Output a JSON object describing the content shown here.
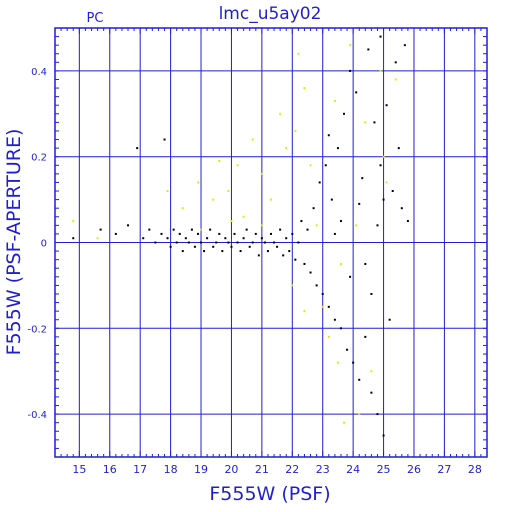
{
  "title": "lmc_u5ay02",
  "corner_label": "PC",
  "chart_data": {
    "type": "scatter",
    "title": "lmc_u5ay02",
    "xlabel": "F555W (PSF)",
    "ylabel": "F555W (PSF-APERTURE)",
    "xlim": [
      14.2,
      28.4
    ],
    "ylim": [
      -0.5,
      0.5
    ],
    "x_ticks": [
      15,
      16,
      17,
      18,
      19,
      20,
      21,
      22,
      23,
      24,
      25,
      26,
      27,
      28
    ],
    "x_tick_labels": [
      "15",
      "16",
      "17",
      "18",
      "19",
      "20",
      "21",
      "22",
      "23",
      "24",
      "25",
      "26",
      "27",
      "28"
    ],
    "y_ticks": [
      -0.4,
      -0.2,
      0,
      0.2,
      0.4
    ],
    "y_tick_labels": [
      "-0.4",
      "-0.2",
      "0",
      "0.2",
      "0.4"
    ],
    "grid": true,
    "series": [
      {
        "color": "#000000",
        "points": [
          [
            14.8,
            0.01
          ],
          [
            15.7,
            0.03
          ],
          [
            16.2,
            0.02
          ],
          [
            16.6,
            0.04
          ],
          [
            16.9,
            0.22
          ],
          [
            17.1,
            0.01
          ],
          [
            17.3,
            0.03
          ],
          [
            17.5,
            0.0
          ],
          [
            17.7,
            0.02
          ],
          [
            17.8,
            0.24
          ],
          [
            17.9,
            0.01
          ],
          [
            18.0,
            -0.01
          ],
          [
            18.1,
            0.03
          ],
          [
            18.2,
            0.0
          ],
          [
            18.3,
            0.02
          ],
          [
            18.4,
            -0.02
          ],
          [
            18.5,
            0.01
          ],
          [
            18.6,
            0.0
          ],
          [
            18.7,
            0.03
          ],
          [
            18.8,
            -0.01
          ],
          [
            18.9,
            0.02
          ],
          [
            19.0,
            0.0
          ],
          [
            19.1,
            -0.02
          ],
          [
            19.2,
            0.01
          ],
          [
            19.3,
            0.03
          ],
          [
            19.4,
            -0.01
          ],
          [
            19.5,
            0.0
          ],
          [
            19.6,
            0.02
          ],
          [
            19.7,
            -0.02
          ],
          [
            19.8,
            0.01
          ],
          [
            19.9,
            0.0
          ],
          [
            20.0,
            -0.01
          ],
          [
            20.1,
            0.02
          ],
          [
            20.2,
            0.0
          ],
          [
            20.3,
            -0.02
          ],
          [
            20.4,
            0.01
          ],
          [
            20.5,
            0.03
          ],
          [
            20.6,
            -0.01
          ],
          [
            20.7,
            0.0
          ],
          [
            20.8,
            0.02
          ],
          [
            20.9,
            -0.03
          ],
          [
            21.0,
            0.01
          ],
          [
            21.1,
            0.0
          ],
          [
            21.2,
            -0.02
          ],
          [
            21.3,
            0.02
          ],
          [
            21.4,
            0.0
          ],
          [
            21.5,
            -0.01
          ],
          [
            21.6,
            0.03
          ],
          [
            21.7,
            -0.03
          ],
          [
            21.8,
            0.01
          ],
          [
            21.9,
            -0.02
          ],
          [
            22.0,
            0.02
          ],
          [
            22.1,
            -0.04
          ],
          [
            22.2,
            0.0
          ],
          [
            22.3,
            0.05
          ],
          [
            22.4,
            -0.05
          ],
          [
            22.5,
            0.03
          ],
          [
            22.6,
            -0.07
          ],
          [
            22.7,
            0.08
          ],
          [
            22.8,
            -0.1
          ],
          [
            22.9,
            0.14
          ],
          [
            23.0,
            -0.12
          ],
          [
            23.1,
            0.18
          ],
          [
            23.2,
            -0.15
          ],
          [
            23.3,
            0.1
          ],
          [
            23.4,
            -0.18
          ],
          [
            23.5,
            0.22
          ],
          [
            23.6,
            -0.2
          ],
          [
            23.7,
            0.3
          ],
          [
            23.8,
            -0.25
          ],
          [
            23.9,
            0.4
          ],
          [
            24.0,
            -0.28
          ],
          [
            24.1,
            0.35
          ],
          [
            24.2,
            -0.32
          ],
          [
            24.3,
            0.15
          ],
          [
            24.4,
            -0.22
          ],
          [
            24.5,
            0.45
          ],
          [
            24.6,
            -0.35
          ],
          [
            24.7,
            0.28
          ],
          [
            24.8,
            -0.4
          ],
          [
            24.9,
            0.48
          ],
          [
            25.0,
            -0.45
          ],
          [
            25.1,
            0.32
          ],
          [
            25.2,
            -0.18
          ],
          [
            25.3,
            0.12
          ],
          [
            25.4,
            0.42
          ],
          [
            25.5,
            0.22
          ],
          [
            25.6,
            0.08
          ],
          [
            25.7,
            0.46
          ],
          [
            25.8,
            0.05
          ],
          [
            23.6,
            0.05
          ],
          [
            23.9,
            -0.08
          ],
          [
            24.2,
            0.09
          ],
          [
            24.6,
            -0.12
          ],
          [
            24.9,
            0.18
          ],
          [
            23.2,
            0.25
          ],
          [
            23.4,
            0.02
          ],
          [
            24.8,
            0.04
          ],
          [
            25.0,
            0.1
          ],
          [
            24.4,
            -0.05
          ]
        ]
      },
      {
        "color": "#e8e800",
        "points": [
          [
            14.8,
            0.05
          ],
          [
            15.6,
            0.01
          ],
          [
            17.9,
            0.12
          ],
          [
            18.4,
            0.08
          ],
          [
            18.9,
            0.14
          ],
          [
            19.4,
            0.1
          ],
          [
            19.6,
            0.19
          ],
          [
            19.9,
            0.12
          ],
          [
            20.2,
            0.18
          ],
          [
            20.4,
            0.06
          ],
          [
            20.7,
            0.24
          ],
          [
            21.0,
            0.16
          ],
          [
            21.3,
            0.1
          ],
          [
            21.6,
            0.3
          ],
          [
            21.8,
            0.22
          ],
          [
            22.1,
            0.26
          ],
          [
            22.2,
            0.44
          ],
          [
            22.4,
            0.36
          ],
          [
            22.6,
            0.18
          ],
          [
            22.8,
            0.04
          ],
          [
            23.0,
            -0.15
          ],
          [
            23.2,
            -0.22
          ],
          [
            23.4,
            0.33
          ],
          [
            23.6,
            -0.05
          ],
          [
            23.7,
            -0.42
          ],
          [
            23.9,
            0.46
          ],
          [
            24.1,
            0.04
          ],
          [
            24.4,
            0.28
          ],
          [
            24.6,
            -0.3
          ],
          [
            24.9,
            0.4
          ],
          [
            25.1,
            0.14
          ],
          [
            25.4,
            0.38
          ],
          [
            19.0,
            0.03
          ],
          [
            20.0,
            0.05
          ],
          [
            21.0,
            0.04
          ],
          [
            22.0,
            -0.1
          ],
          [
            22.4,
            -0.16
          ],
          [
            23.5,
            -0.28
          ],
          [
            24.2,
            -0.4
          ],
          [
            25.0,
            0.2
          ]
        ]
      }
    ]
  }
}
